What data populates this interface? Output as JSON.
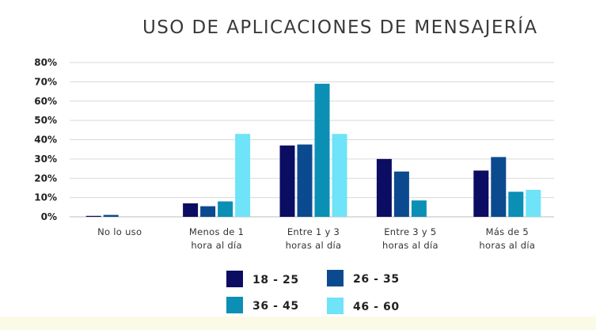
{
  "chart_data": {
    "type": "bar",
    "title": "USO DE APLICACIONES DE MENSAJERÍA",
    "xlabel": "",
    "ylabel": "",
    "ylim": [
      0,
      80
    ],
    "yticks": [
      "0%",
      "10%",
      "20%",
      "30%",
      "40%",
      "50%",
      "60%",
      "70%",
      "80%"
    ],
    "categories": [
      [
        "No lo uso"
      ],
      [
        "Menos de 1",
        "hora  al día"
      ],
      [
        "Entre 1 y 3",
        "horas al día"
      ],
      [
        "Entre 3 y 5",
        "horas al día"
      ],
      [
        "Más de 5",
        "horas al día"
      ]
    ],
    "series": [
      {
        "name": "18 - 25",
        "color": "#0b0d63",
        "values": [
          0.5,
          7,
          37,
          30,
          24
        ]
      },
      {
        "name": "26 - 35",
        "color": "#0b4a8f",
        "values": [
          1,
          5.5,
          37.5,
          23.5,
          31
        ]
      },
      {
        "name": "36 - 45",
        "color": "#0b8fb5",
        "values": [
          0,
          8,
          69,
          8.5,
          13
        ]
      },
      {
        "name": "46 - 60",
        "color": "#6fe3f7",
        "values": [
          0,
          43,
          43,
          0,
          14
        ]
      }
    ],
    "grid": true,
    "legend": "bottom"
  }
}
